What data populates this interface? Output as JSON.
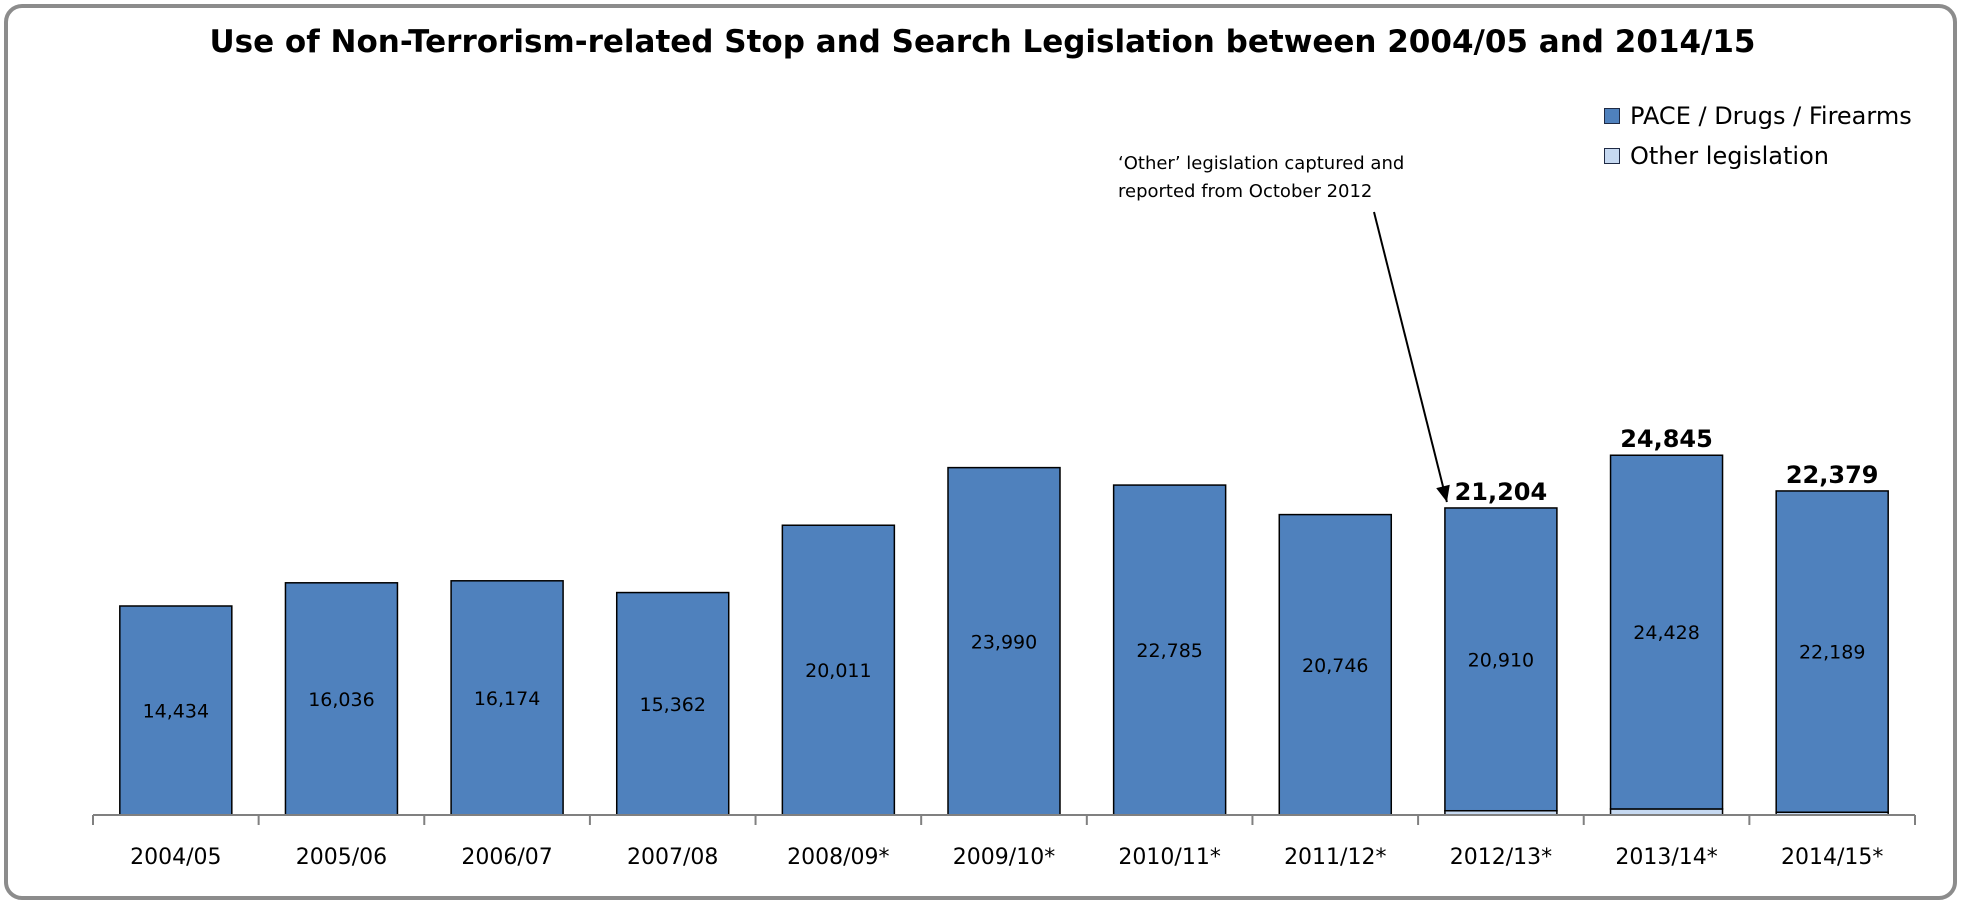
{
  "chart_data": {
    "type": "bar",
    "stacked": true,
    "title": "Use of Non-Terrorism-related  Stop and Search Legislation  between 2004/05 and 2014/15",
    "xlabel": "",
    "ylabel": "",
    "ylim": [
      0,
      28000
    ],
    "grid": false,
    "legend_position": "top-right",
    "categories": [
      "2004/05",
      "2005/06",
      "2006/07",
      "2007/08",
      "2008/09*",
      "2009/10*",
      "2010/11*",
      "2011/12*",
      "2012/13*",
      "2013/14*",
      "2014/15*"
    ],
    "series": [
      {
        "name": "PACE / Drugs / Firearms",
        "color": "#4f81bd",
        "values": [
          14434,
          16036,
          16174,
          15362,
          20011,
          23990,
          22785,
          20746,
          20910,
          24428,
          22189
        ],
        "labels": [
          "14,434",
          "16,036",
          "16,174",
          "15,362",
          "20,011",
          "23,990",
          "22,785",
          "20,746",
          "20,910",
          "24,428",
          "22,189"
        ]
      },
      {
        "name": "Other legislation",
        "color": "#c6d9f1",
        "values": [
          0,
          0,
          0,
          0,
          0,
          0,
          0,
          0,
          294,
          417,
          190
        ]
      }
    ],
    "totals": [
      {
        "index": 8,
        "value": 21204,
        "label": "21,204"
      },
      {
        "index": 9,
        "value": 24845,
        "label": "24,845"
      },
      {
        "index": 10,
        "value": 22379,
        "label": "22,379"
      }
    ],
    "annotation": {
      "lines": [
        "‘Other’  legislation  captured  and",
        "reported from October 2012"
      ],
      "points_to_index": 8
    }
  }
}
